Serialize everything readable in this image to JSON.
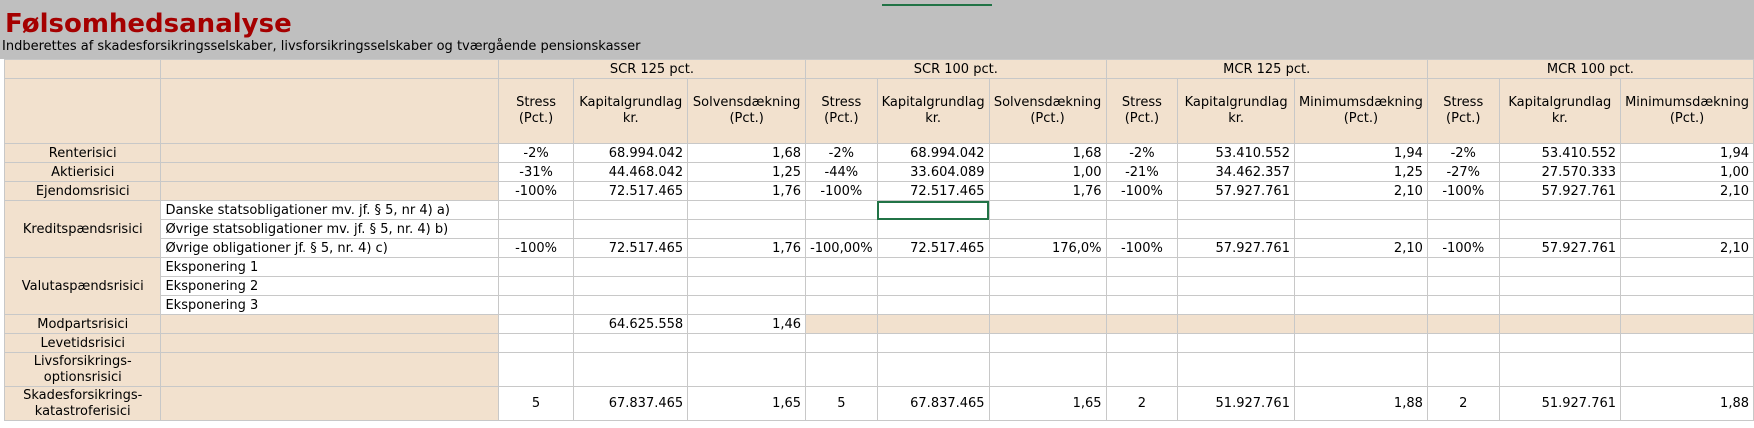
{
  "title": "Følsomhedsanalyse",
  "subtitle": "Indberettes af skadesforsikringsselskaber, livsforsikringsselskaber og tværgående pensionskasser",
  "groups": [
    "SCR 125 pct.",
    "SCR 100 pct.",
    "MCR 125 pct.",
    "MCR 100 pct."
  ],
  "col_headers": {
    "stress": [
      "Stress",
      "(Pct.)"
    ],
    "kapital": [
      "Kapitalgrundlag",
      "kr."
    ],
    "solvens": [
      "Solvensdækning",
      "(Pct.)"
    ],
    "minimum": [
      "Minimumsdækning",
      "(Pct.)"
    ]
  },
  "rows": {
    "renterisici": {
      "label": "Renterisici",
      "scr125": [
        "-2%",
        "68.994.042",
        "1,68"
      ],
      "scr100": [
        "-2%",
        "68.994.042",
        "1,68"
      ],
      "mcr125": [
        "-2%",
        "53.410.552",
        "1,94"
      ],
      "mcr100": [
        "-2%",
        "53.410.552",
        "1,94"
      ]
    },
    "aktierisici": {
      "label": "Aktierisici",
      "scr125": [
        "-31%",
        "44.468.042",
        "1,25"
      ],
      "scr100": [
        "-44%",
        "33.604.089",
        "1,00"
      ],
      "mcr125": [
        "-21%",
        "34.462.357",
        "1,25"
      ],
      "mcr100": [
        "-27%",
        "27.570.333",
        "1,00"
      ]
    },
    "ejendomsrisici": {
      "label": "Ejendomsrisici",
      "scr125": [
        "-100%",
        "72.517.465",
        "1,76"
      ],
      "scr100": [
        "-100%",
        "72.517.465",
        "1,76"
      ],
      "mcr125": [
        "-100%",
        "57.927.761",
        "2,10"
      ],
      "mcr100": [
        "-100%",
        "57.927.761",
        "2,10"
      ]
    },
    "kredit": {
      "label": "Kreditspændsrisici",
      "sub1": "Danske statsobligationer mv. jf. § 5, nr 4) a)",
      "sub2": "Øvrige statsobligationer mv. jf. § 5, nr. 4) b)",
      "sub3": "Øvrige obligationer jf. § 5, nr. 4) c)",
      "scr125": [
        "-100%",
        "72.517.465",
        "1,76"
      ],
      "scr100": [
        "-100,00%",
        "72.517.465",
        "176,0%"
      ],
      "mcr125": [
        "-100%",
        "57.927.761",
        "2,10"
      ],
      "mcr100": [
        "-100%",
        "57.927.761",
        "2,10"
      ]
    },
    "valuta": {
      "label": "Valutaspændsrisici",
      "sub1": "Eksponering 1",
      "sub2": "Eksponering 2",
      "sub3": "Eksponering 3"
    },
    "modparts": {
      "label": "Modpartsrisici",
      "scr125": [
        "",
        "64.625.558",
        "1,46"
      ]
    },
    "levetid": {
      "label": "Levetidsrisici"
    },
    "livs": {
      "label1": "Livsforsikrings-",
      "label2": "optionsrisici"
    },
    "skades": {
      "label1": "Skadesforsikrings-",
      "label2": "katastroferisici",
      "scr125": [
        "5",
        "67.837.465",
        "1,65"
      ],
      "scr100": [
        "5",
        "67.837.465",
        "1,65"
      ],
      "mcr125": [
        "2",
        "51.927.761",
        "1,88"
      ],
      "mcr100": [
        "2",
        "51.927.761",
        "1,88"
      ]
    }
  }
}
